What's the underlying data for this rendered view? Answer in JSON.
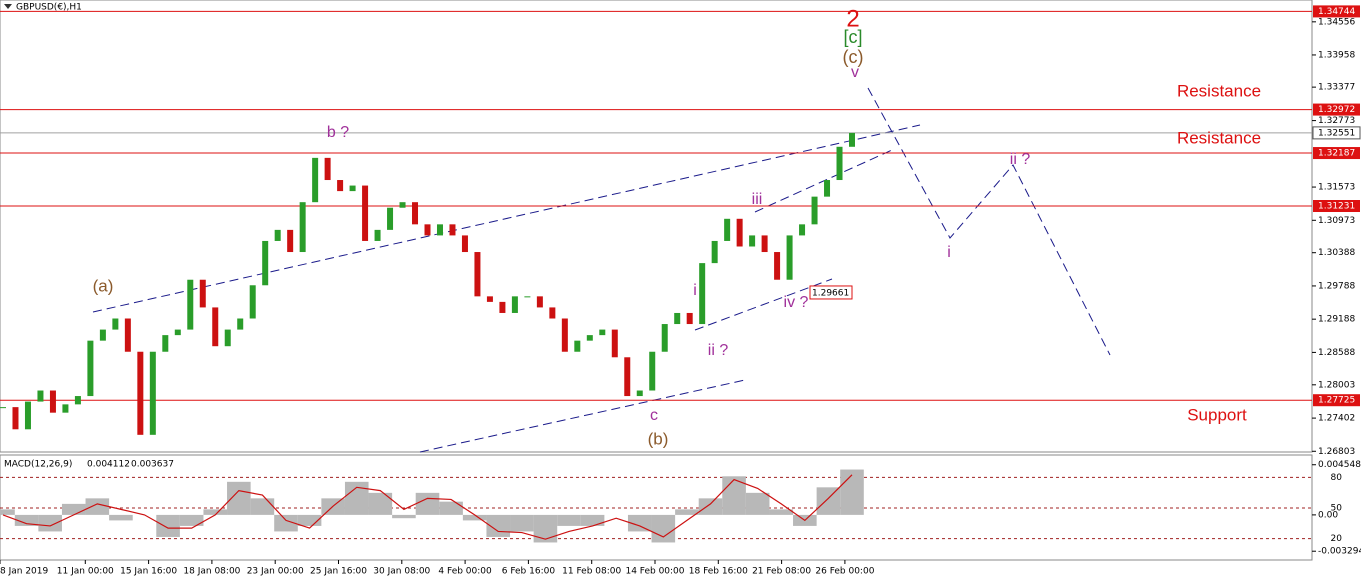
{
  "chart_data": [
    {
      "type": "candlestick",
      "title": "GBPUSD(€),H1",
      "values": [
        1.276,
        1.272,
        1.277,
        1.279,
        1.275,
        1.2765,
        1.278,
        1.288,
        1.29,
        1.292,
        1.286,
        1.271,
        1.286,
        1.289,
        1.29,
        1.299,
        1.294,
        1.287,
        1.29,
        1.292,
        1.298,
        1.306,
        1.308,
        1.304,
        1.313,
        1.321,
        1.317,
        1.315,
        1.316,
        1.306,
        1.308,
        1.312,
        1.313,
        1.309,
        1.307,
        1.309,
        1.307,
        1.304,
        1.296,
        1.295,
        1.293,
        1.296,
        1.296,
        1.294,
        1.292,
        1.286,
        1.288,
        1.289,
        1.29,
        1.285,
        1.278,
        1.279,
        1.286,
        1.291,
        1.293,
        1.291,
        1.302,
        1.306,
        1.31,
        1.305,
        1.307,
        1.304,
        1.299,
        1.307,
        1.309,
        1.314,
        1.317,
        1.323,
        1.3255
      ],
      "up_color": "#2a9d2a",
      "down_color": "#cc1111",
      "ylim": [
        1.2679,
        1.3495
      ],
      "yticks": [
        1.34556,
        1.33958,
        1.33377,
        1.32773,
        1.31573,
        1.30973,
        1.30388,
        1.29788,
        1.29188,
        1.28588,
        1.28003,
        1.27402,
        1.26803
      ],
      "levels": [
        {
          "value": 1.34744,
          "color": "#dd1111"
        },
        {
          "value": 1.32972,
          "color": "#dd1111"
        },
        {
          "value": 1.32187,
          "color": "#dd1111"
        },
        {
          "value": 1.31231,
          "color": "#dd1111"
        },
        {
          "value": 1.27725,
          "color": "#dd1111"
        }
      ],
      "current_price": {
        "value": 1.32551,
        "color": "#a0a0a0"
      },
      "price_label": 1.29661,
      "time_labels": [
        "8 Jan 2019",
        "11 Jan 00:00",
        "15 Jan 16:00",
        "18 Jan 08:00",
        "23 Jan 00:00",
        "25 Jan 16:00",
        "30 Jan 08:00",
        "4 Feb 00:00",
        "6 Feb 16:00",
        "11 Feb 08:00",
        "14 Feb 00:00",
        "18 Feb 16:00",
        "21 Feb 08:00",
        "26 Feb 00:00"
      ],
      "annotations": [
        {
          "text": "2",
          "color": "#dd1111"
        },
        {
          "text": "[c]",
          "color": "#2a8a2a"
        },
        {
          "text": "(c)",
          "color": "#8b5a2b"
        },
        {
          "text": "v",
          "color": "#a0309a"
        },
        {
          "text": "Resistance",
          "color": "#dd1111"
        },
        {
          "text": "Resistance",
          "color": "#dd1111"
        },
        {
          "text": "Support",
          "color": "#dd1111"
        },
        {
          "text": "b ?",
          "color": "#a0309a"
        },
        {
          "text": "(a)",
          "color": "#8b5a2b"
        },
        {
          "text": "c",
          "color": "#a0309a"
        },
        {
          "text": "(b)",
          "color": "#8b5a2b"
        },
        {
          "text": "i",
          "color": "#a0309a"
        },
        {
          "text": "ii ?",
          "color": "#a0309a"
        },
        {
          "text": "iii",
          "color": "#a0309a"
        },
        {
          "text": "iv ?",
          "color": "#a0309a"
        },
        {
          "text": "i",
          "color": "#a0309a"
        },
        {
          "text": "ii ?",
          "color": "#a0309a"
        }
      ]
    },
    {
      "type": "macd",
      "title": "MACD(12,26,9)",
      "series": [
        {
          "color": "#b8b8b8",
          "values": [
            0.0005,
            -0.001,
            -0.0015,
            0.001,
            0.0015,
            -0.0005,
            0.0,
            -0.002,
            -0.001,
            0.0005,
            0.003,
            0.0015,
            -0.0015,
            -0.001,
            0.0015,
            0.003,
            0.002,
            -0.0003,
            0.002,
            0.0012,
            -0.0005,
            -0.002,
            -0.0015,
            -0.0025,
            -0.001,
            -0.001,
            0.0,
            -0.0015,
            -0.0025,
            0.0005,
            0.0015,
            0.0035,
            0.002,
            0.0005,
            -0.001,
            0.0025,
            0.004112
          ]
        },
        {
          "color": "#cc1111",
          "values": [
            0.0,
            -0.0008,
            -0.001,
            0.0,
            0.001,
            0.0005,
            0.0,
            -0.0012,
            -0.0012,
            0.0,
            0.0022,
            0.0018,
            -0.0005,
            -0.0012,
            0.0008,
            0.0025,
            0.0022,
            0.0005,
            0.0015,
            0.0014,
            0.0,
            -0.0015,
            -0.0016,
            -0.0022,
            -0.0015,
            -0.001,
            -0.0003,
            -0.001,
            -0.002,
            -0.0005,
            0.001,
            0.0032,
            0.0024,
            0.001,
            -0.0005,
            0.0015,
            0.003637
          ]
        }
      ],
      "ylim": [
        -0.004,
        0.00525
      ],
      "yticks": [
        0.004548,
        {
          "value": 0,
          "label": "0.00"
        },
        -0.003294
      ],
      "y2lim": [
        0,
        100
      ],
      "y2ticks": [
        80,
        50,
        20
      ]
    }
  ]
}
